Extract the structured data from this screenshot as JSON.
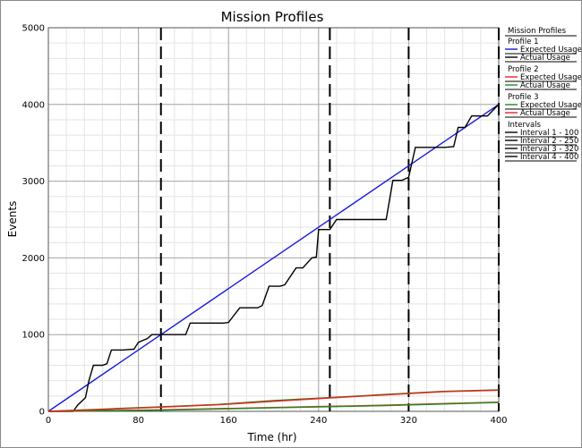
{
  "chart_data": {
    "type": "line",
    "title": "Mission Profiles",
    "xlabel": "Time (hr)",
    "ylabel": "Events",
    "xlim": [
      0,
      400
    ],
    "ylim": [
      0,
      5000
    ],
    "xticks": [
      0,
      80,
      160,
      240,
      320,
      400
    ],
    "yticks": [
      0,
      1000,
      2000,
      3000,
      4000,
      5000
    ],
    "x_minor_step": 16,
    "y_minor_step": 200,
    "grid": true,
    "legend_position": "right",
    "legend": {
      "title": "Mission Profiles",
      "groups": [
        {
          "name": "Profile 1",
          "entries": [
            {
              "label": "Expected Usage",
              "color": "#1a1adb"
            },
            {
              "label": "Actual Usage",
              "color": "#000000"
            }
          ]
        },
        {
          "name": "Profile 2",
          "entries": [
            {
              "label": "Expected Usage",
              "color": "#e8241a"
            },
            {
              "label": "Actual Usage",
              "color": "#1e8a1e"
            }
          ]
        },
        {
          "name": "Profile 3",
          "entries": [
            {
              "label": "Expected Usage",
              "color": "#1e8a1e"
            },
            {
              "label": "Actual Usage",
              "color": "#e8241a"
            }
          ]
        },
        {
          "name": "Intervals",
          "entries": [
            {
              "label": "Interval 1 - 100",
              "color": "#000000"
            },
            {
              "label": "Interval 2 - 250",
              "color": "#000000"
            },
            {
              "label": "Interval 3 - 320",
              "color": "#000000"
            },
            {
              "label": "Interval 4 - 400",
              "color": "#000000"
            }
          ]
        }
      ]
    },
    "intervals": [
      100,
      250,
      320,
      400
    ],
    "series": [
      {
        "color": "#1a1adb",
        "dashed": false,
        "x": [
          0,
          400
        ],
        "y": [
          0,
          4000
        ]
      },
      {
        "color": "#000000",
        "dashed": false,
        "x": [
          0,
          22,
          26,
          33,
          36,
          40,
          48,
          52,
          56,
          66,
          76,
          80,
          88,
          92,
          100,
          108,
          112,
          122,
          126,
          140,
          156,
          160,
          170,
          180,
          186,
          190,
          196,
          206,
          210,
          220,
          226,
          234,
          238,
          240,
          250,
          256,
          260,
          280,
          300,
          306,
          314,
          320,
          326,
          330,
          352,
          360,
          364,
          370,
          376,
          384,
          390,
          400
        ],
        "y": [
          0,
          0,
          80,
          180,
          400,
          600,
          600,
          620,
          800,
          800,
          810,
          900,
          950,
          1000,
          1000,
          1000,
          1000,
          1000,
          1150,
          1150,
          1150,
          1160,
          1350,
          1350,
          1350,
          1380,
          1630,
          1630,
          1650,
          1870,
          1870,
          2000,
          2010,
          2370,
          2370,
          2500,
          2500,
          2500,
          2500,
          3010,
          3010,
          3050,
          3440,
          3440,
          3440,
          3450,
          3700,
          3700,
          3850,
          3850,
          3850,
          4000
        ]
      },
      {
        "color": "#e8241a",
        "dashed": false,
        "x": [
          0,
          100,
          200,
          300,
          400
        ],
        "y": [
          0,
          20,
          50,
          80,
          120
        ]
      },
      {
        "color": "#1e8a1e",
        "dashed": false,
        "x": [
          0,
          50,
          100,
          150,
          200,
          250,
          300,
          350,
          400
        ],
        "y": [
          0,
          30,
          60,
          90,
          140,
          180,
          220,
          260,
          280
        ]
      },
      {
        "color": "#1e8a1e",
        "dashed": false,
        "x": [
          0,
          100,
          200,
          300,
          400
        ],
        "y": [
          0,
          15,
          45,
          75,
          115
        ]
      },
      {
        "color": "#e8241a",
        "dashed": false,
        "x": [
          0,
          50,
          100,
          150,
          200,
          250,
          300,
          350,
          400
        ],
        "y": [
          0,
          25,
          55,
          85,
          130,
          175,
          215,
          255,
          275
        ]
      }
    ]
  }
}
